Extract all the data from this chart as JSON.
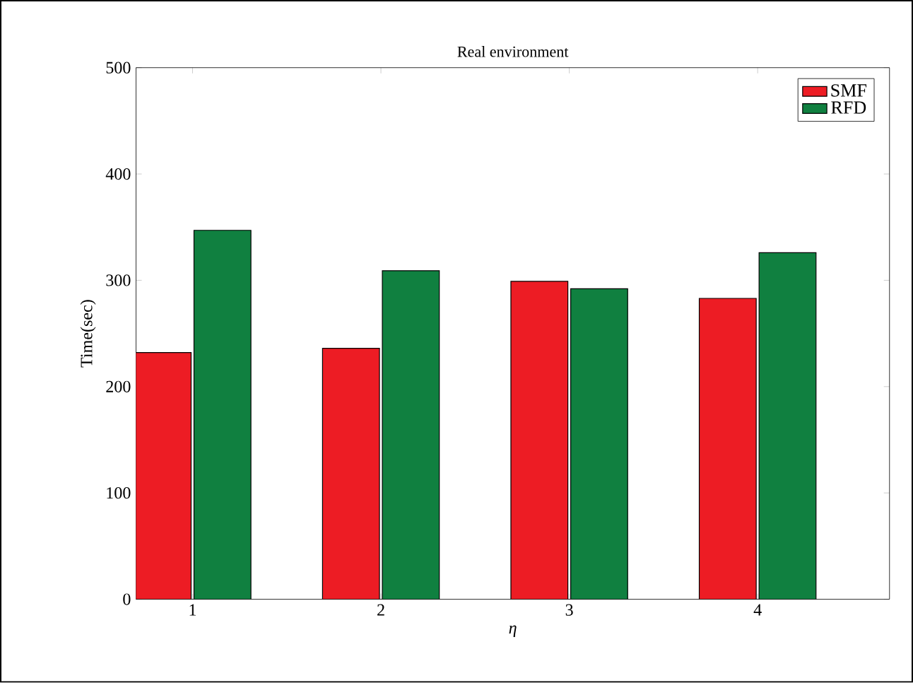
{
  "chart_data": {
    "type": "bar",
    "title": "Real environment",
    "xlabel": "η",
    "ylabel": "Time(sec)",
    "categories": [
      "1",
      "2",
      "3",
      "4"
    ],
    "series": [
      {
        "name": "SMF",
        "color": "#ed1c24",
        "values": [
          232,
          236,
          299,
          283
        ]
      },
      {
        "name": "RFD",
        "color": "#108040",
        "values": [
          347,
          309,
          292,
          326
        ]
      }
    ],
    "ylim": [
      0,
      500
    ],
    "yticks": [
      0,
      100,
      200,
      300,
      400,
      500
    ],
    "grid": false,
    "legend": "top right"
  }
}
